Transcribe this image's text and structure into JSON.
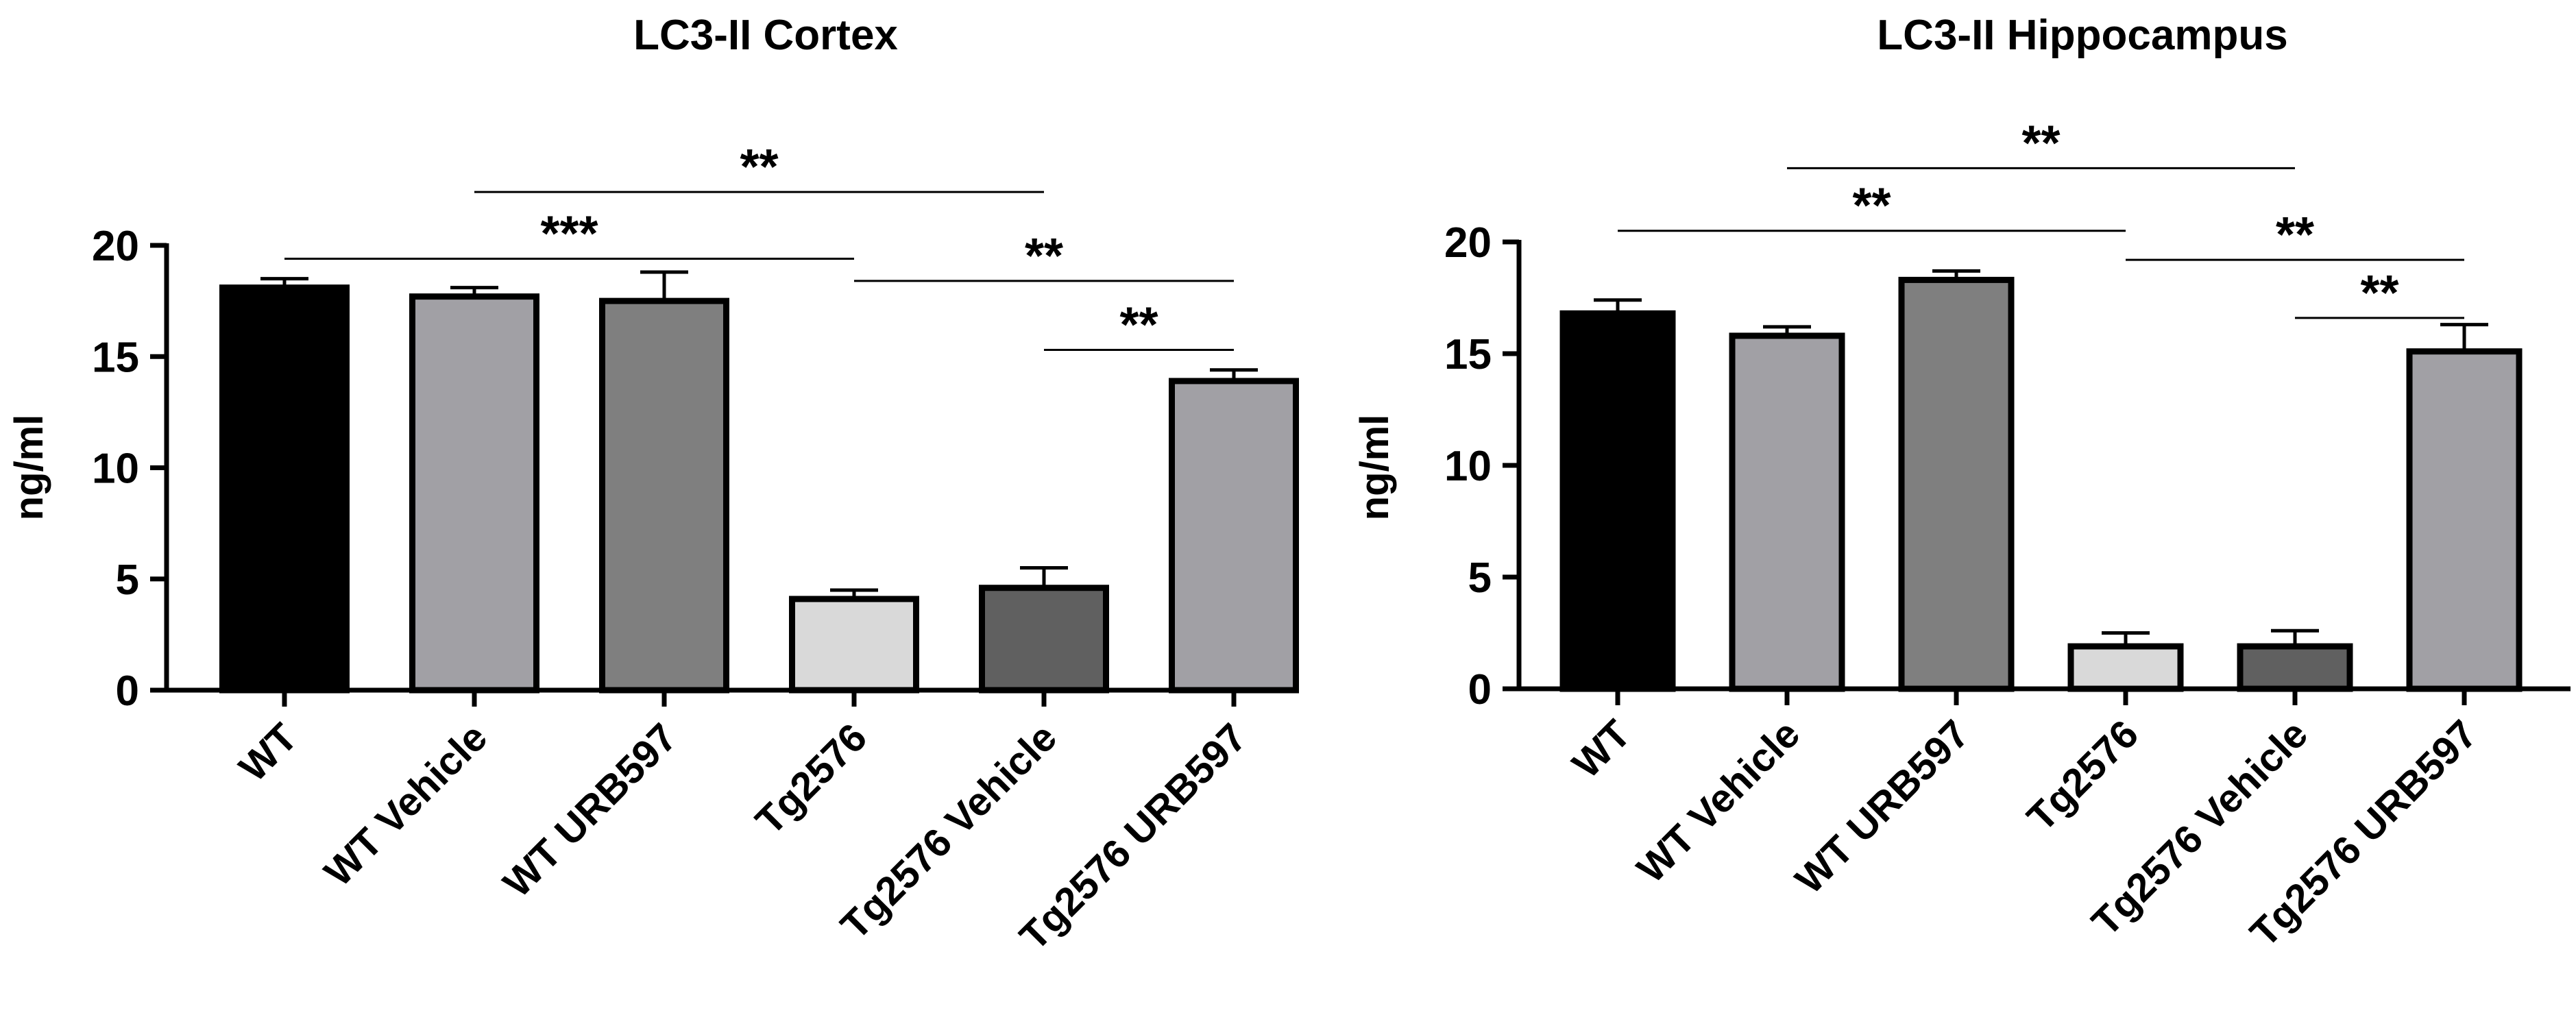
{
  "chart_data": [
    {
      "type": "bar",
      "title": "LC3-II Cortex",
      "xlabel": "",
      "ylabel": "ng/ml",
      "ylim": [
        0,
        20
      ],
      "yticks": [
        "0",
        "5",
        "10",
        "15",
        "20"
      ],
      "categories": [
        "WT",
        "WT Vehicle",
        "WT URB597",
        "Tg2576",
        "Tg2576 Vehicle",
        "Tg2576 URB597"
      ],
      "values": [
        18.1,
        17.7,
        17.5,
        4.1,
        4.6,
        13.9
      ],
      "errors": [
        0.4,
        0.4,
        1.3,
        0.4,
        0.9,
        0.5
      ],
      "colors": [
        "#000000",
        "#a1a0a5",
        "#7f7f7f",
        "#d9d9d9",
        "#606060",
        "#a1a0a5"
      ],
      "significance": [
        {
          "from": 0,
          "to": 3,
          "label": "***",
          "y": 19.4
        },
        {
          "from": 1,
          "to": 4,
          "label": "**",
          "y": 22.4
        },
        {
          "from": 3,
          "to": 5,
          "label": "**",
          "y": 18.4
        },
        {
          "from": 4,
          "to": 5,
          "label": "**",
          "y": 15.3
        }
      ]
    },
    {
      "type": "bar",
      "title": "LC3-II Hippocampus",
      "xlabel": "",
      "ylabel": "ng/ml",
      "ylim": [
        0,
        20
      ],
      "yticks": [
        "0",
        "5",
        "10",
        "15",
        "20"
      ],
      "categories": [
        "WT",
        "WT Vehicle",
        "WT URB597",
        "Tg2576",
        "Tg2576 Vehicle",
        "Tg2576 URB597"
      ],
      "values": [
        16.8,
        15.8,
        18.3,
        1.9,
        1.9,
        15.1
      ],
      "errors": [
        0.6,
        0.4,
        0.4,
        0.6,
        0.7,
        1.2
      ],
      "colors": [
        "#000000",
        "#a1a0a5",
        "#7f7f7f",
        "#d9d9d9",
        "#606060",
        "#a1a0a5"
      ],
      "significance": [
        {
          "from": 0,
          "to": 3,
          "label": "**",
          "y": 20.5
        },
        {
          "from": 1,
          "to": 4,
          "label": "**",
          "y": 23.3
        },
        {
          "from": 3,
          "to": 5,
          "label": "**",
          "y": 19.2
        },
        {
          "from": 4,
          "to": 5,
          "label": "**",
          "y": 16.6
        }
      ]
    }
  ]
}
